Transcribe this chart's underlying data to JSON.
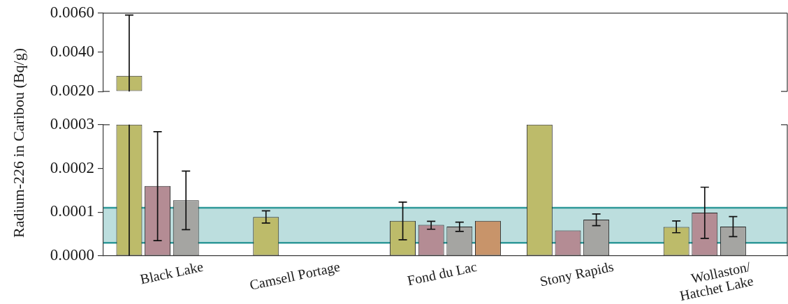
{
  "chart_data": [
    {
      "type": "bar",
      "categories": [
        null,
        null,
        null,
        null,
        null
      ],
      "tick_labels": "y",
      "ylim": [
        0.002,
        0.006
      ],
      "yticks": [
        {
          "value": 0.002,
          "label": "0.0020"
        },
        {
          "value": 0.004,
          "label": "0.0040"
        },
        {
          "value": 0.006,
          "label": "0.0060"
        }
      ],
      "series": [
        {
          "color": "#bdbb6a",
          "values": [
            0.0028,
            null,
            null,
            null,
            null
          ],
          "errors": [
            [
              0.002,
              0.0059
            ],
            null,
            null,
            null,
            null
          ]
        }
      ]
    },
    {
      "type": "bar",
      "categories": [
        "Black Lake",
        "Camsell Portage",
        "Fond du Lac",
        "Stony Rapids",
        "Wollaston/\nHatchet Lake"
      ],
      "ylabel": "Radium-226 in Caribou (Bq/g)",
      "ylim": [
        0,
        0.0003
      ],
      "yticks": [
        {
          "value": 0,
          "label": "0.0000"
        },
        0.0001,
        0.0002,
        0.0003
      ],
      "bands": [
        {
          "axis": "y",
          "from": 3e-05,
          "to": 0.00011,
          "color": "#2e9898"
        }
      ],
      "ref_lines": [
        {
          "axis": "y",
          "value": 3e-05,
          "color": "#2e9898"
        },
        {
          "axis": "y",
          "value": 0.00011,
          "color": "#2e9898"
        }
      ],
      "series": [
        {
          "color": "#bdbb6a",
          "values": [
            0.0003,
            8.9e-05,
            8e-05,
            0.0003,
            6.6e-05
          ],
          "errors": [
            [
              0,
              0.0003
            ],
            [
              7.5e-05,
              0.000103
            ],
            [
              3.7e-05,
              0.000123
            ],
            null,
            [
              5.3e-05,
              8e-05
            ]
          ]
        },
        {
          "color": "#b48c94",
          "values": [
            0.00016,
            null,
            7.1e-05,
            5.8e-05,
            9.9e-05
          ],
          "errors": [
            [
              3.5e-05,
              0.000284
            ],
            null,
            [
              6.1e-05,
              7.9e-05
            ],
            null,
            [
              4e-05,
              0.000157
            ]
          ]
        },
        {
          "color": "#a5a5a2",
          "values": [
            0.000127,
            null,
            6.7e-05,
            8.3e-05,
            6.7e-05
          ],
          "errors": [
            [
              6e-05,
              0.000194
            ],
            null,
            [
              5.6e-05,
              7.7e-05
            ],
            [
              6.9e-05,
              9.6e-05
            ],
            [
              4.4e-05,
              9e-05
            ]
          ]
        },
        {
          "color": "#c8946a",
          "values": [
            null,
            null,
            8e-05,
            null,
            null
          ]
        }
      ]
    }
  ]
}
